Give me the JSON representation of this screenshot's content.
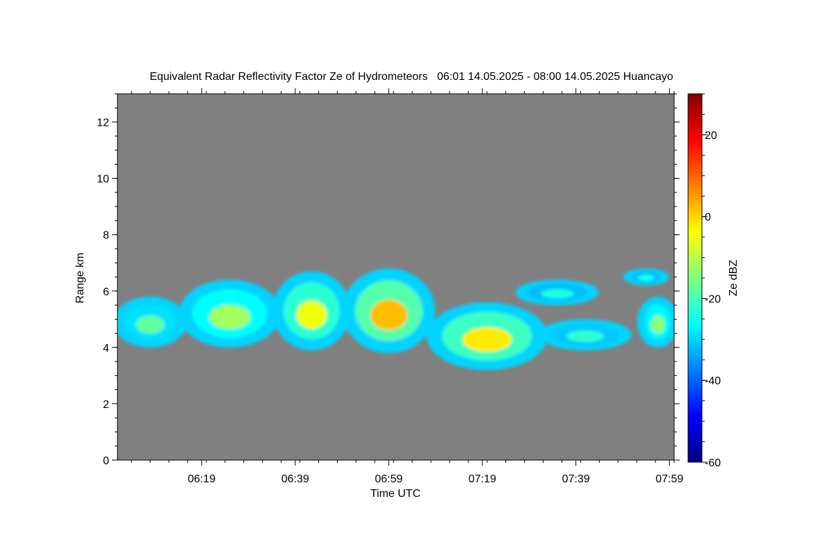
{
  "chart_data": {
    "type": "heatmap",
    "title": "Equivalent Radar Reflectivity Factor Ze of Hydrometeors   06:01 14.05.2025 - 08:00 14.05.2025 Huancayo",
    "xlabel": "Time UTC",
    "ylabel": "Range km",
    "xlim_minutes_utc": [
      "06:01",
      "08:00"
    ],
    "x_tick_labels": [
      "06:19",
      "06:39",
      "06:59",
      "07:19",
      "07:39",
      "07:59"
    ],
    "ylim": [
      0,
      13
    ],
    "y_ticks": [
      0,
      2,
      4,
      6,
      8,
      10,
      12
    ],
    "y_tick_labels": [
      "0",
      "2",
      "4",
      "6",
      "8",
      "10",
      "12"
    ],
    "background_color": "#808080",
    "colorbar": {
      "label": "Ze dBZ",
      "range": [
        -60,
        30
      ],
      "ticks": [
        -60,
        -40,
        -20,
        0,
        20
      ],
      "tick_labels": [
        "-60",
        "-40",
        "-20",
        "0",
        "20"
      ],
      "colormap": "jet"
    },
    "echo_features": [
      {
        "time_start": "06:01",
        "time_end": "06:15",
        "base_km": 4.0,
        "top_km": 5.8,
        "peak_dbz": -18
      },
      {
        "time_start": "06:15",
        "time_end": "06:35",
        "base_km": 4.0,
        "top_km": 6.4,
        "peak_dbz": -12
      },
      {
        "time_start": "06:35",
        "time_end": "06:50",
        "base_km": 3.9,
        "top_km": 6.7,
        "peak_dbz": -5
      },
      {
        "time_start": "06:50",
        "time_end": "07:08",
        "base_km": 3.8,
        "top_km": 6.8,
        "peak_dbz": 2
      },
      {
        "time_start": "07:08",
        "time_end": "07:32",
        "base_km": 3.2,
        "top_km": 5.6,
        "peak_dbz": -2
      },
      {
        "time_start": "07:32",
        "time_end": "07:50",
        "base_km": 3.9,
        "top_km": 5.0,
        "peak_dbz": -22
      },
      {
        "time_start": "07:27",
        "time_end": "07:43",
        "base_km": 5.5,
        "top_km": 6.4,
        "peak_dbz": -24
      },
      {
        "time_start": "07:53",
        "time_end": "08:00",
        "base_km": 4.0,
        "top_km": 5.8,
        "peak_dbz": -14
      },
      {
        "time_start": "07:50",
        "time_end": "07:58",
        "base_km": 6.2,
        "top_km": 6.8,
        "peak_dbz": -24
      }
    ]
  }
}
